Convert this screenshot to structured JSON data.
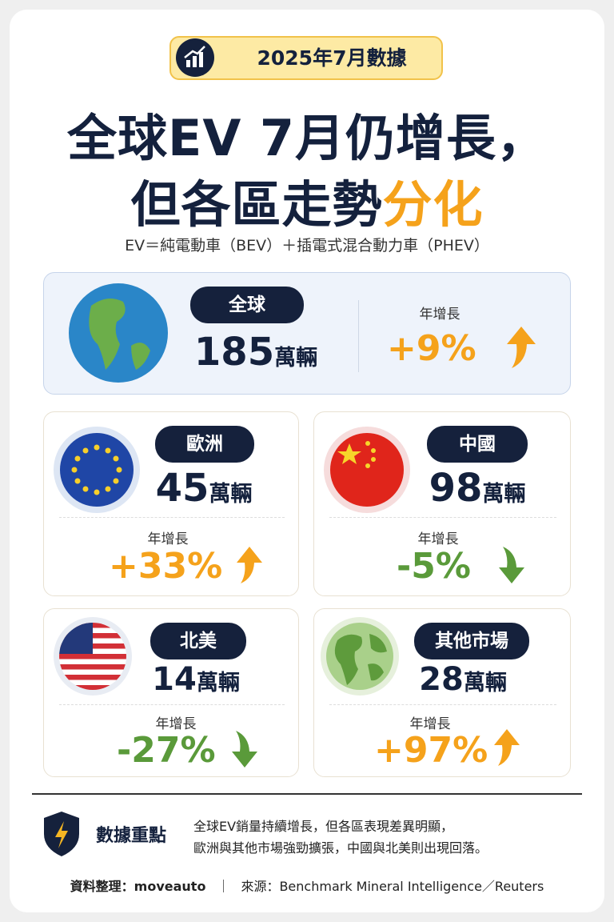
{
  "badge": "2025年7月數據",
  "title": {
    "line1": "全球EV 7月仍增長，",
    "line2_main": "但各區走勢",
    "line2_highlight": "分化"
  },
  "subtitle": "EV＝純電動車（BEV）＋插電式混合動力車（PHEV）",
  "global": {
    "label": "全球",
    "value": "185",
    "unit": "萬輛",
    "growth_label": "年增長",
    "growth": "+9%"
  },
  "regions": [
    {
      "label": "歐洲",
      "value": "45",
      "unit": "萬輛",
      "growth_label": "年增長",
      "growth": "+33%"
    },
    {
      "label": "中國",
      "value": "98",
      "unit": "萬輛",
      "growth_label": "年增長",
      "growth": "-5%"
    },
    {
      "label": "北美",
      "value": "14",
      "unit": "萬輛",
      "growth_label": "年增長",
      "growth": "-27%"
    },
    {
      "label": "其他市場",
      "value": "28",
      "unit": "萬輛",
      "growth_label": "年增長",
      "growth": "+97%"
    }
  ],
  "summary": {
    "heading": "數據重點",
    "lines": [
      "全球EV銷量持續增長，但各區表現差異明顯，",
      "歐洲與其他市場強勁擴張，中國與北美則出現回落。"
    ]
  },
  "footer": {
    "credit": "資料整理：moveauto",
    "separator": "｜",
    "source": "來源：Benchmark Mineral Intelligence／Reuters"
  }
}
